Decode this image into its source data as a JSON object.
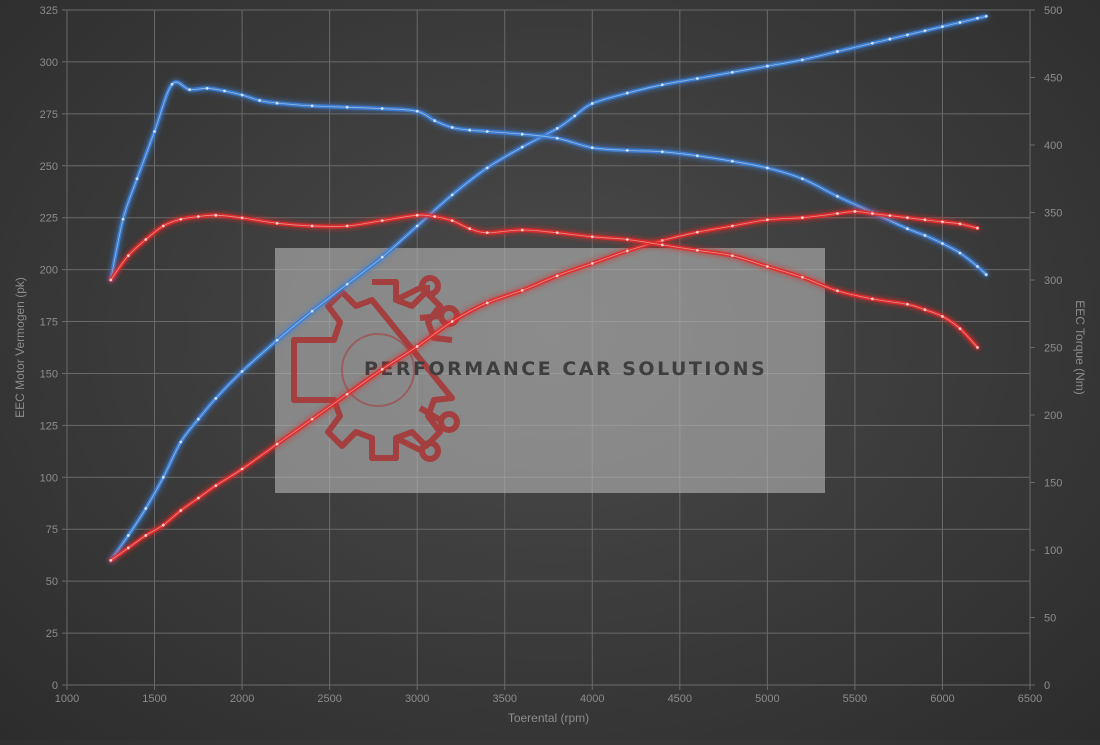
{
  "chart_data": {
    "type": "line",
    "xlabel": "Toerental (rpm)",
    "ylabel_left": "EEC Motor Vermogen (pk)",
    "ylabel_right": "EEC Torque (Nm)",
    "xlim": [
      1000,
      6500
    ],
    "ylim_left": [
      0,
      325
    ],
    "ylim_right": [
      0,
      500
    ],
    "x_ticks": [
      1000,
      1500,
      2000,
      2500,
      3000,
      3500,
      4000,
      4500,
      5000,
      5500,
      6000,
      6500
    ],
    "y_left_ticks": [
      0,
      25,
      50,
      75,
      100,
      125,
      150,
      175,
      200,
      225,
      250,
      275,
      300,
      325
    ],
    "y_right_ticks": [
      0,
      50,
      100,
      150,
      200,
      250,
      300,
      350,
      400,
      450,
      500
    ],
    "grid": true,
    "series": [
      {
        "axis": "left",
        "color": "#3d7fd6",
        "x": [
          1250,
          1350,
          1450,
          1550,
          1650,
          1750,
          1850,
          2000,
          2200,
          2400,
          2600,
          2800,
          3000,
          3200,
          3400,
          3600,
          3800,
          3900,
          4000,
          4200,
          4400,
          4600,
          4800,
          5000,
          5200,
          5400,
          5600,
          5700,
          5800,
          5900,
          6000,
          6100,
          6200,
          6250
        ],
        "values": [
          60,
          72,
          85,
          100,
          117,
          128,
          138,
          151,
          166,
          180,
          193,
          206,
          221,
          236,
          249,
          259,
          268,
          274,
          280,
          285,
          289,
          292,
          295,
          298,
          301,
          305,
          309,
          311,
          313,
          315,
          317,
          319,
          321,
          322
        ]
      },
      {
        "axis": "right",
        "color": "#3d7fd6",
        "x": [
          1250,
          1320,
          1400,
          1500,
          1600,
          1700,
          1800,
          1900,
          2000,
          2100,
          2200,
          2400,
          2600,
          2800,
          3000,
          3100,
          3200,
          3300,
          3400,
          3600,
          3800,
          4000,
          4200,
          4400,
          4600,
          4800,
          5000,
          5200,
          5400,
          5600,
          5800,
          5900,
          6000,
          6100,
          6200,
          6250
        ],
        "values": [
          300,
          345,
          375,
          410,
          445,
          441,
          442,
          440,
          437,
          433,
          431,
          429,
          428,
          427,
          425,
          418,
          413,
          411,
          410,
          408,
          405,
          398,
          396,
          395,
          392,
          388,
          383,
          375,
          362,
          350,
          338,
          333,
          327,
          320,
          310,
          304
        ]
      },
      {
        "axis": "left",
        "color": "#e02a2a",
        "x": [
          1250,
          1350,
          1450,
          1550,
          1650,
          1750,
          1850,
          2000,
          2200,
          2400,
          2600,
          2800,
          3000,
          3200,
          3400,
          3600,
          3800,
          4000,
          4200,
          4400,
          4600,
          4800,
          5000,
          5200,
          5400,
          5500,
          5600,
          5700,
          5800,
          5900,
          6000,
          6100,
          6200
        ],
        "values": [
          60,
          66,
          72,
          77,
          84,
          90,
          96,
          104,
          116,
          128,
          140,
          152,
          163,
          175,
          184,
          190,
          197,
          203,
          209,
          214,
          218,
          221,
          224,
          225,
          227,
          228,
          227,
          226,
          225,
          224,
          223,
          222,
          220
        ]
      },
      {
        "axis": "right",
        "color": "#e02a2a",
        "x": [
          1250,
          1350,
          1450,
          1550,
          1650,
          1750,
          1850,
          2000,
          2200,
          2400,
          2600,
          2800,
          3000,
          3100,
          3200,
          3300,
          3400,
          3600,
          3800,
          4000,
          4200,
          4400,
          4600,
          4800,
          5000,
          5200,
          5400,
          5600,
          5800,
          5900,
          6000,
          6100,
          6200
        ],
        "values": [
          300,
          318,
          330,
          340,
          345,
          347,
          348,
          346,
          342,
          340,
          340,
          344,
          348,
          347,
          344,
          338,
          335,
          337,
          335,
          332,
          330,
          326,
          322,
          318,
          310,
          302,
          292,
          286,
          282,
          278,
          273,
          264,
          250
        ]
      }
    ]
  },
  "watermark": {
    "text": "PERFORMANCE CAR SOLUTIONS",
    "logo_color": "#a83838"
  }
}
